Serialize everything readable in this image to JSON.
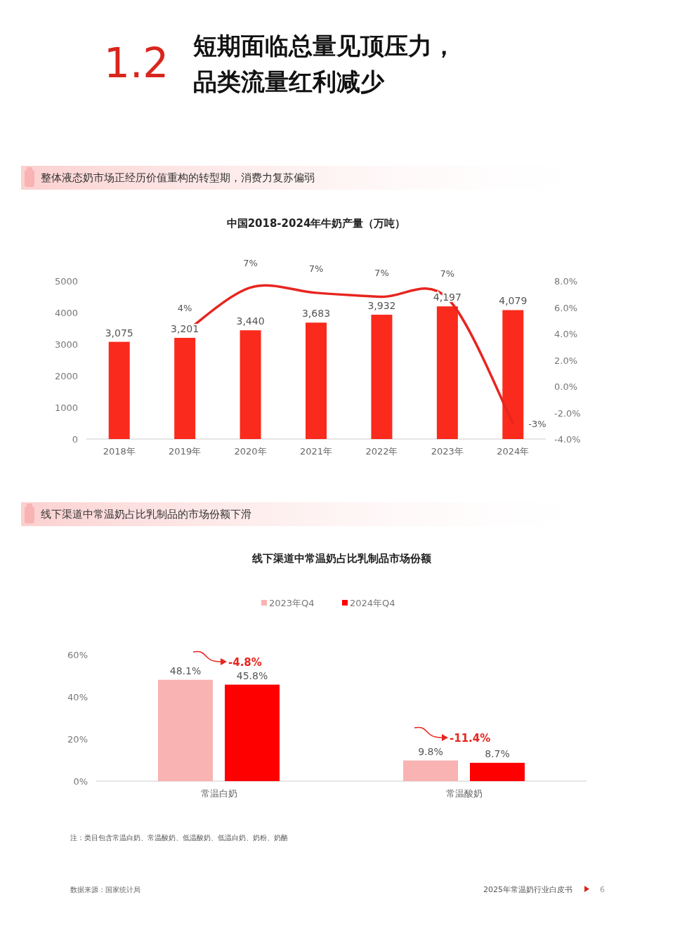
{
  "chart_data": [
    {
      "type": "bar",
      "title": "中国2018-2024年牛奶产量（万吨）",
      "annotations": [
        "1.2",
        "短期面临总量见顶压力，",
        "品类流量红利减少",
        "整体液态奶市场正经历价值重构的转型期，消费力复苏偏弱"
      ],
      "categories": [
        "2018年",
        "2019年",
        "2020年",
        "2021年",
        "2022年",
        "2023年",
        "2024年"
      ],
      "series": [
        {
          "type": "bar",
          "color": "#fa2a1c",
          "values": [
            3075,
            3201,
            3440,
            3683,
            3932,
            4197,
            4079
          ],
          "value_labels": [
            "3,075",
            "3,201",
            "3,440",
            "3,683",
            "3,932",
            "4,197",
            "4,079"
          ]
        },
        {
          "type": "line",
          "axis": "y2",
          "color": "#e8251f",
          "values": [
            null,
            4.1,
            7.5,
            7.1,
            6.8,
            6.7,
            -2.8
          ],
          "value_labels": [
            null,
            "4%",
            "7%",
            "7%",
            "7%",
            "7%",
            "-3%"
          ]
        }
      ],
      "ylim": [
        0,
        5000
      ],
      "yticks": [
        0,
        1000,
        2000,
        3000,
        4000,
        5000
      ],
      "y2lim": [
        -4,
        8
      ],
      "y2ticks": [
        {
          "value": -4,
          "label": "-4.0%"
        },
        {
          "value": -2,
          "label": "-2.0%"
        },
        {
          "value": 0,
          "label": "0.0%"
        },
        {
          "value": 2,
          "label": "2.0%"
        },
        {
          "value": 4,
          "label": "4.0%"
        },
        {
          "value": 6,
          "label": "6.0%"
        },
        {
          "value": 8,
          "label": "8.0%"
        }
      ]
    },
    {
      "type": "bar",
      "title": "线下渠道中常温奶占比乳制品市场份额",
      "annotations": [
        "线下渠道中常温奶占比乳制品的市场份额下滑",
        "注：类目包含常温白奶、常温酸奶、低温酸奶、低温白奶、奶粉、奶酪",
        "数据来源：国家统计局",
        "2025年常温奶行业白皮书",
        "6",
        "-4.8%",
        "-11.4%"
      ],
      "categories": [
        "常温白奶",
        "常温酸奶"
      ],
      "series": [
        {
          "name": "2023年Q4",
          "color": "#f8b3b2",
          "values": [
            48.1,
            9.8
          ],
          "value_labels": [
            "48.1%",
            "9.8%"
          ]
        },
        {
          "name": "2024年Q4",
          "color": "#fe0000",
          "values": [
            45.8,
            8.7
          ],
          "value_labels": [
            "45.8%",
            "8.7%"
          ]
        }
      ],
      "ylim": [
        0,
        60
      ],
      "yticks": [
        {
          "value": 0,
          "label": "0%"
        },
        {
          "value": 20,
          "label": "20%"
        },
        {
          "value": 40,
          "label": "40%"
        },
        {
          "value": 60,
          "label": "60%"
        }
      ],
      "legend": "top"
    }
  ]
}
